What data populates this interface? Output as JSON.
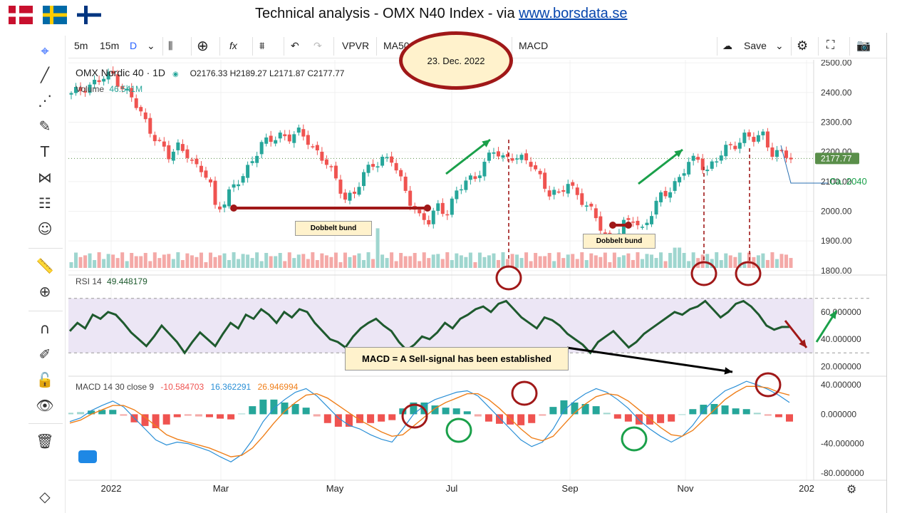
{
  "header": {
    "title_text": "Technical analysis - OMX N40 Index - via ",
    "title_link": "www.borsdata.se",
    "flags": [
      "denmark-flag",
      "sweden-flag",
      "finland-flag"
    ]
  },
  "toolbar": {
    "intervals": [
      "5m",
      "15m",
      "D"
    ],
    "indicators": [
      "VPVR",
      "MA50",
      "MACD"
    ],
    "save_label": "Save"
  },
  "legend": {
    "symbol": "OMX Nordic 40 · 1D",
    "ohlc": "O2176.33  H2189.27  L2171.87  C2177.77",
    "volume_label": "Volume",
    "volume_value": "46.541M",
    "rsi_label": "RSI 14",
    "rsi_value": "49.448179",
    "macd_label": "MACD 14 30 close 9",
    "macd_hist": "-10.584703",
    "macd_line": "16.362291",
    "macd_signal": "26.946994"
  },
  "annotations": {
    "date_ellipse": "23. Dec. 2022",
    "double_bottom_1": "Dobbelt bund",
    "double_bottom_2": "Dobbelt bund",
    "target": "Ca. 2040",
    "macd_callout": "MACD = A Sell-signal has been established"
  },
  "colors": {
    "up": "#26a69a",
    "down": "#ef5350",
    "rsi_line": "#1e5a2e",
    "rsi_band": "#ece6f5",
    "macd_line": "#2a8fd6",
    "signal_line": "#ef7f1a",
    "annotation_red": "#a01818",
    "annotation_green": "#1aa04a",
    "price_badge": "#5a8f4a"
  },
  "chart_data": [
    {
      "type": "candlestick",
      "title": "OMX Nordic 40 · 1D",
      "x_ticks": [
        "2022",
        "Mar",
        "May",
        "Jul",
        "Sep",
        "Nov",
        "202"
      ],
      "y_ticks": [
        "2500.00",
        "2400.00",
        "2300.00",
        "2200.00",
        "2100.00",
        "2000.00",
        "1900.00",
        "1800.00"
      ],
      "ylim": [
        1790,
        2510
      ],
      "last_price": "2177.77",
      "close_path": [
        [
          0,
          2390
        ],
        [
          3,
          2420
        ],
        [
          6,
          2440
        ],
        [
          9,
          2460
        ],
        [
          11,
          2420
        ],
        [
          13,
          2380
        ],
        [
          16,
          2300
        ],
        [
          19,
          2230
        ],
        [
          21,
          2180
        ],
        [
          23,
          2220
        ],
        [
          25,
          2200
        ],
        [
          27,
          2140
        ],
        [
          29,
          2120
        ],
        [
          30,
          2090
        ],
        [
          31,
          2020
        ],
        [
          33,
          2030
        ],
        [
          35,
          2080
        ],
        [
          37,
          2120
        ],
        [
          39,
          2180
        ],
        [
          41,
          2220
        ],
        [
          43,
          2240
        ],
        [
          45,
          2260
        ],
        [
          47,
          2250
        ],
        [
          49,
          2260
        ],
        [
          51,
          2240
        ],
        [
          53,
          2200
        ],
        [
          55,
          2160
        ],
        [
          57,
          2100
        ],
        [
          59,
          2050
        ],
        [
          61,
          2060
        ],
        [
          63,
          2120
        ],
        [
          65,
          2160
        ],
        [
          67,
          2180
        ],
        [
          69,
          2170
        ],
        [
          71,
          2100
        ],
        [
          73,
          2040
        ],
        [
          75,
          1980
        ],
        [
          77,
          1960
        ],
        [
          79,
          2020
        ],
        [
          81,
          2000
        ],
        [
          83,
          2060
        ],
        [
          85,
          2100
        ],
        [
          87,
          2120
        ],
        [
          89,
          2160
        ],
        [
          91,
          2200
        ],
        [
          93,
          2180
        ],
        [
          95,
          2190
        ],
        [
          97,
          2170
        ],
        [
          99,
          2160
        ],
        [
          101,
          2120
        ],
        [
          103,
          2060
        ],
        [
          105,
          2050
        ],
        [
          107,
          2100
        ],
        [
          109,
          2060
        ],
        [
          111,
          2010
        ],
        [
          113,
          1980
        ],
        [
          115,
          1920
        ],
        [
          117,
          1900
        ],
        [
          119,
          1950
        ],
        [
          121,
          1980
        ],
        [
          123,
          1940
        ],
        [
          125,
          1990
        ],
        [
          127,
          2050
        ],
        [
          129,
          2080
        ],
        [
          131,
          2110
        ],
        [
          133,
          2160
        ],
        [
          135,
          2180
        ],
        [
          137,
          2140
        ],
        [
          139,
          2170
        ],
        [
          141,
          2210
        ],
        [
          143,
          2230
        ],
        [
          145,
          2250
        ],
        [
          147,
          2240
        ],
        [
          149,
          2260
        ],
        [
          151,
          2200
        ],
        [
          153,
          2190
        ],
        [
          155,
          2178
        ]
      ]
    },
    {
      "type": "line",
      "title": "RSI 14",
      "y_ticks": [
        "60.000000",
        "40.000000",
        "20.000000"
      ],
      "levels": [
        70,
        30
      ],
      "ylim": [
        15,
        85
      ],
      "values": [
        46,
        52,
        48,
        58,
        55,
        60,
        58,
        52,
        45,
        40,
        35,
        42,
        50,
        44,
        38,
        30,
        38,
        45,
        40,
        35,
        44,
        52,
        48,
        58,
        55,
        62,
        58,
        52,
        60,
        56,
        62,
        60,
        52,
        46,
        40,
        38,
        34,
        42,
        48,
        52,
        55,
        50,
        46,
        38,
        32,
        36,
        42,
        40,
        45,
        52,
        48,
        55,
        58,
        62,
        64,
        60,
        66,
        68,
        62,
        56,
        52,
        48,
        56,
        54,
        50,
        44,
        40,
        36,
        30,
        38,
        42,
        46,
        40,
        34,
        38,
        44,
        48,
        52,
        56,
        60,
        58,
        62,
        64,
        68,
        62,
        56,
        60,
        66,
        68,
        64,
        58,
        50,
        47,
        49,
        49
      ]
    },
    {
      "type": "line",
      "title": "MACD 14 30 close 9",
      "y_ticks": [
        "40.000000",
        "0.000000",
        "-40.000000",
        "-80.000000"
      ],
      "ylim": [
        -88,
        48
      ],
      "macd": [
        -10,
        -5,
        5,
        12,
        18,
        10,
        -5,
        -20,
        -35,
        -42,
        -38,
        -40,
        -45,
        -50,
        -58,
        -65,
        -55,
        -35,
        -10,
        8,
        20,
        30,
        35,
        25,
        10,
        -5,
        -15,
        -20,
        -28,
        -34,
        -38,
        -20,
        0,
        12,
        20,
        25,
        30,
        32,
        25,
        10,
        -5,
        -20,
        -35,
        -44,
        -38,
        -20,
        5,
        18,
        28,
        35,
        30,
        20,
        8,
        -8,
        -20,
        -30,
        -38,
        -30,
        -15,
        5,
        20,
        32,
        38,
        45,
        40,
        34,
        26,
        16
      ],
      "signal": [
        -12,
        -8,
        0,
        6,
        12,
        12,
        6,
        -4,
        -16,
        -28,
        -34,
        -38,
        -42,
        -46,
        -52,
        -58,
        -56,
        -46,
        -30,
        -12,
        4,
        16,
        26,
        28,
        22,
        12,
        2,
        -8,
        -16,
        -24,
        -30,
        -28,
        -16,
        -4,
        8,
        16,
        22,
        28,
        28,
        20,
        8,
        -6,
        -20,
        -32,
        -36,
        -30,
        -14,
        2,
        14,
        24,
        28,
        26,
        18,
        6,
        -6,
        -18,
        -28,
        -30,
        -22,
        -8,
        6,
        20,
        30,
        38,
        38,
        36,
        30,
        26
      ]
    }
  ]
}
